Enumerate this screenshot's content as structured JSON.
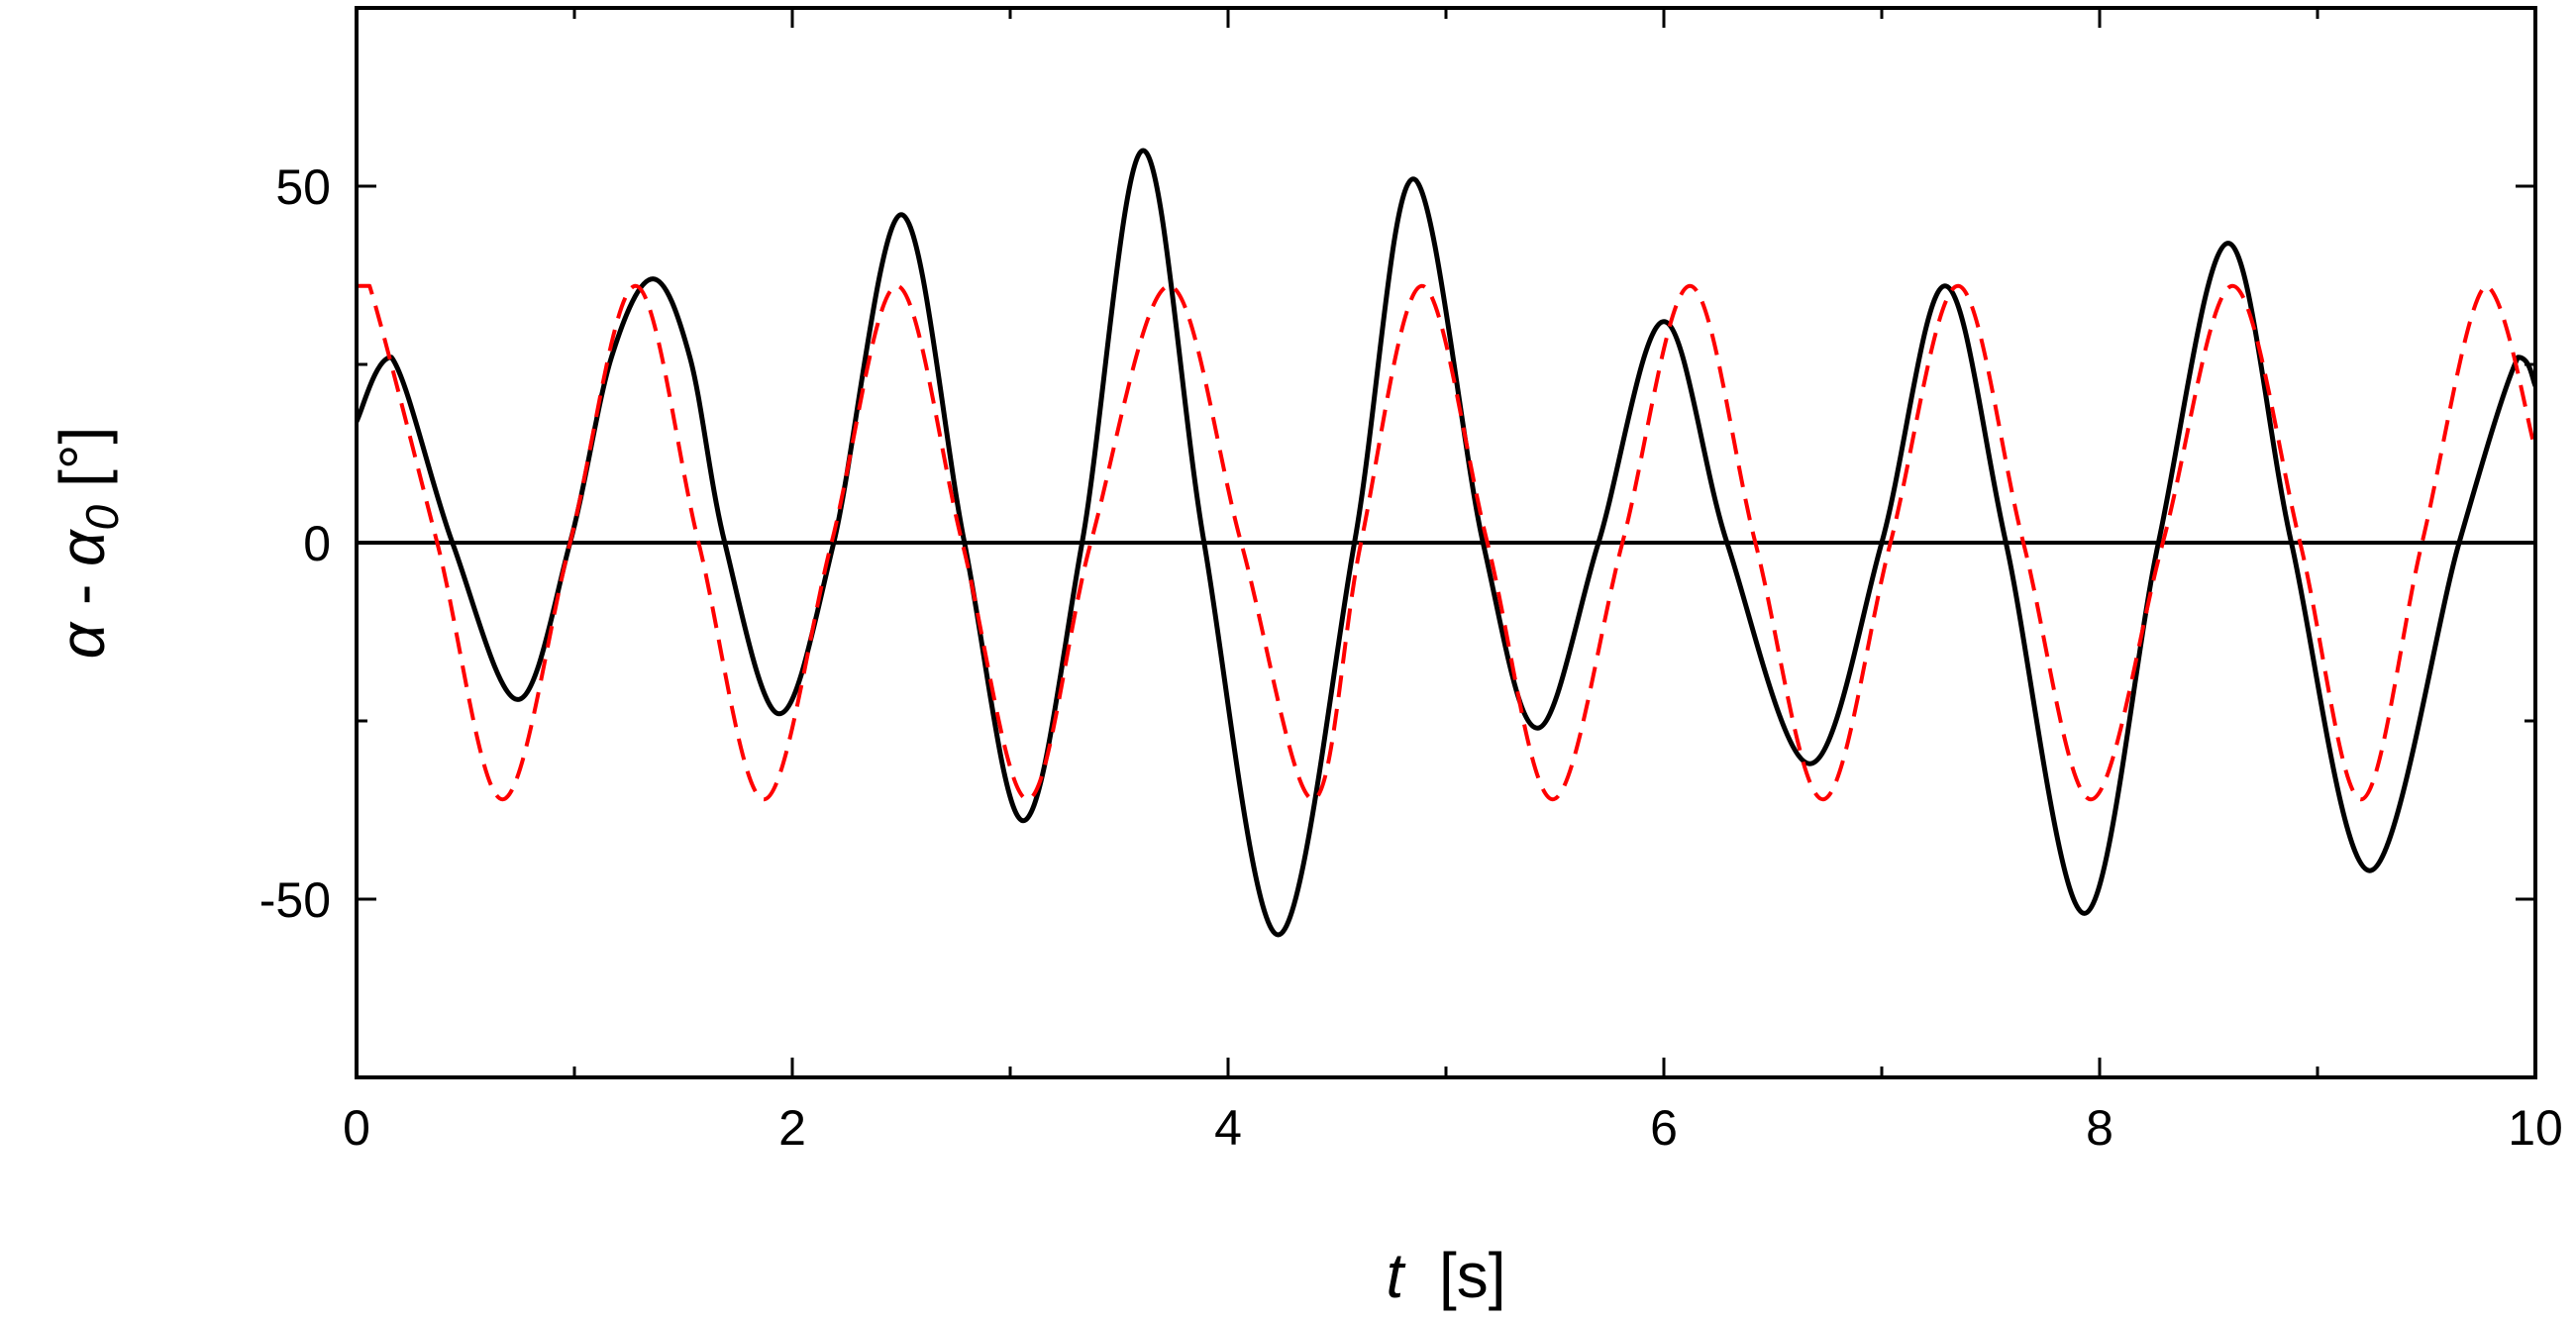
{
  "chart_data": {
    "type": "line",
    "xlabel": {
      "symbol": "t",
      "unit": "[s]"
    },
    "ylabel": {
      "symbol": "α",
      "separator": " - ",
      "symbol2": "α",
      "subscript": "0",
      "unit": "[°]"
    },
    "xlim": [
      0,
      10
    ],
    "ylim": [
      -75,
      75
    ],
    "xticks": [
      0,
      2,
      4,
      6,
      8,
      10
    ],
    "yticks": [
      -50,
      0,
      50
    ],
    "grid": false,
    "reference_line": {
      "y": 0,
      "color": "#000000"
    },
    "series": [
      {
        "style": "solid",
        "color": "#000000",
        "x": [
          0,
          0.16,
          0.44,
          0.74,
          0.98,
          1.17,
          1.36,
          1.53,
          1.69,
          1.94,
          2.19,
          2.5,
          2.79,
          3.06,
          3.33,
          3.61,
          3.89,
          4.23,
          4.58,
          4.85,
          5.17,
          5.42,
          5.7,
          6.0,
          6.29,
          6.67,
          7.0,
          7.29,
          7.57,
          7.93,
          8.27,
          8.59,
          8.88,
          9.24,
          9.65,
          9.92,
          10
        ],
        "y": [
          17,
          26,
          0,
          -22,
          0,
          26,
          37,
          26,
          0,
          -24,
          0,
          46,
          0,
          -39,
          0,
          55,
          0,
          -55,
          0,
          51,
          0,
          -26,
          0,
          31,
          0,
          -31,
          0,
          36,
          0,
          -52,
          0,
          42,
          0,
          -46,
          0,
          26,
          22
        ]
      },
      {
        "style": "dashed",
        "color": "#ff0000",
        "x": [
          0,
          0.06,
          0.37,
          0.67,
          0.98,
          1.28,
          1.57,
          1.87,
          2.18,
          2.48,
          2.78,
          3.08,
          3.37,
          3.73,
          4.06,
          4.39,
          4.61,
          4.89,
          5.19,
          5.49,
          5.81,
          6.12,
          6.42,
          6.73,
          7.04,
          7.35,
          7.65,
          7.96,
          8.29,
          8.61,
          8.92,
          9.2,
          9.48,
          9.77,
          10
        ],
        "y": [
          36,
          36,
          0,
          -36,
          0,
          36,
          0,
          -36,
          0,
          36,
          0,
          -36,
          0,
          36,
          0,
          -36,
          0,
          36,
          0,
          -36,
          0,
          36,
          0,
          -36,
          0,
          36,
          0,
          -36,
          0,
          36,
          0,
          -36,
          0,
          36,
          13
        ]
      }
    ]
  }
}
